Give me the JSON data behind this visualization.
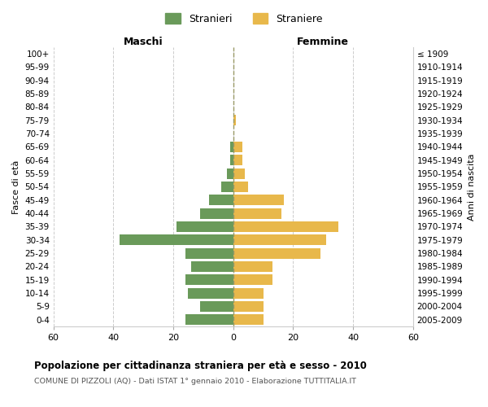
{
  "age_groups": [
    "100+",
    "95-99",
    "90-94",
    "85-89",
    "80-84",
    "75-79",
    "70-74",
    "65-69",
    "60-64",
    "55-59",
    "50-54",
    "45-49",
    "40-44",
    "35-39",
    "30-34",
    "25-29",
    "20-24",
    "15-19",
    "10-14",
    "5-9",
    "0-4"
  ],
  "birth_years": [
    "≤ 1909",
    "1910-1914",
    "1915-1919",
    "1920-1924",
    "1925-1929",
    "1930-1934",
    "1935-1939",
    "1940-1944",
    "1945-1949",
    "1950-1954",
    "1955-1959",
    "1960-1964",
    "1965-1969",
    "1970-1974",
    "1975-1979",
    "1980-1984",
    "1985-1989",
    "1990-1994",
    "1995-1999",
    "2000-2004",
    "2005-2009"
  ],
  "males": [
    0,
    0,
    0,
    0,
    0,
    0,
    0,
    1,
    1,
    2,
    4,
    8,
    11,
    19,
    38,
    16,
    14,
    16,
    15,
    11,
    16
  ],
  "females": [
    0,
    0,
    0,
    0,
    0,
    1,
    0,
    3,
    3,
    4,
    5,
    17,
    16,
    35,
    31,
    29,
    13,
    13,
    10,
    10,
    10
  ],
  "male_color": "#6a9a5a",
  "female_color": "#e8b84b",
  "background_color": "#ffffff",
  "grid_color": "#cccccc",
  "title": "Popolazione per cittadinanza straniera per età e sesso - 2010",
  "subtitle": "COMUNE DI PIZZOLI (AQ) - Dati ISTAT 1° gennaio 2010 - Elaborazione TUTTITALIA.IT",
  "xlabel_left": "Maschi",
  "xlabel_right": "Femmine",
  "ylabel_left": "Fasce di età",
  "ylabel_right": "Anni di nascita",
  "legend_male": "Stranieri",
  "legend_female": "Straniere",
  "xlim": 60,
  "bar_height": 0.8
}
